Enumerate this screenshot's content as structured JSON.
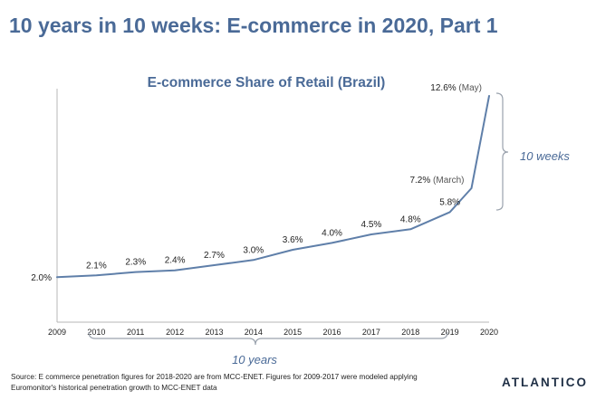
{
  "headline": "10 years in 10 weeks: E-commerce in 2020, Part 1",
  "colors": {
    "accent": "#4a6a97",
    "line": "#5f7fa9",
    "axis": "#b7b7b7",
    "bracket": "#9aa2ad",
    "text": "#222222",
    "logo": "#1f2f45"
  },
  "chart_data": {
    "type": "line",
    "title": "E-commerce Share of Retail (Brazil)",
    "xlabel": "",
    "ylabel": "",
    "x_ticks": [
      "2009",
      "2010",
      "2011",
      "2012",
      "2013",
      "2014",
      "2015",
      "2016",
      "2017",
      "2018",
      "2019",
      "2020"
    ],
    "x_range": [
      2009,
      2020
    ],
    "ylim": [
      0,
      12.6
    ],
    "grid": false,
    "legend": "none",
    "series": [
      {
        "points": [
          {
            "x": 2009,
            "y": 2.0,
            "label": "2.0%",
            "note": ""
          },
          {
            "x": 2010,
            "y": 2.1,
            "label": "2.1%",
            "note": ""
          },
          {
            "x": 2011,
            "y": 2.3,
            "label": "2.3%",
            "note": ""
          },
          {
            "x": 2012,
            "y": 2.4,
            "label": "2.4%",
            "note": ""
          },
          {
            "x": 2013,
            "y": 2.7,
            "label": "2.7%",
            "note": ""
          },
          {
            "x": 2014,
            "y": 3.0,
            "label": "3.0%",
            "note": ""
          },
          {
            "x": 2015,
            "y": 3.6,
            "label": "3.6%",
            "note": ""
          },
          {
            "x": 2016,
            "y": 4.0,
            "label": "4.0%",
            "note": ""
          },
          {
            "x": 2017,
            "y": 4.5,
            "label": "4.5%",
            "note": ""
          },
          {
            "x": 2018,
            "y": 4.8,
            "label": "4.8%",
            "note": ""
          },
          {
            "x": 2019,
            "y": 5.8,
            "label": "5.8%",
            "note": ""
          },
          {
            "x": 2019.55,
            "y": 7.2,
            "label": "7.2%",
            "note": "(March)"
          },
          {
            "x": 2020,
            "y": 12.6,
            "label": "12.6%",
            "note": "(May)"
          }
        ]
      }
    ],
    "annotations": {
      "weeks_bracket": "10 weeks",
      "years_bracket": "10 years"
    }
  },
  "source_lines": [
    "Source: E commerce penetration figures for 2018-2020 are from MCC-ENET. Figures for 2009-2017 were modeled applying",
    "Euromonitor's historical penetration growth to MCC-ENET data"
  ],
  "logo_text": "ATLANTICO"
}
